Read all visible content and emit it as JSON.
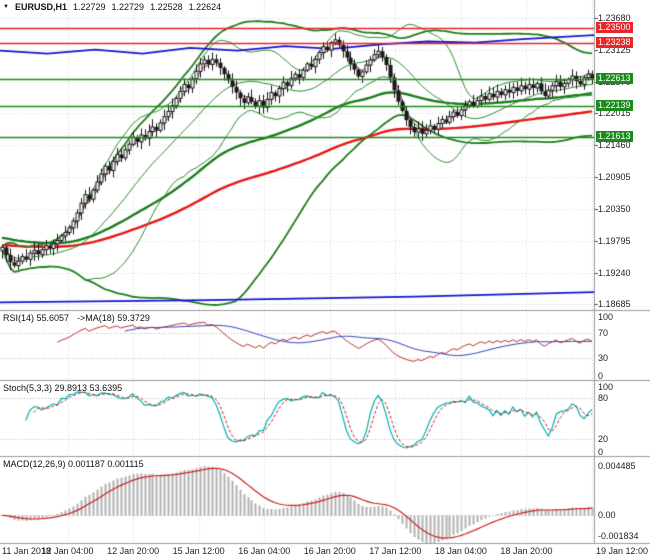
{
  "header": {
    "collapse_icon": "▼"
  },
  "colors": {
    "background": "#ffffff",
    "grid": "#d9d9d9",
    "separator": "#9a9a9a",
    "candle_outline": "#1a1a1a",
    "candle_bull": "#ffffff",
    "candle_bear": "#1a1a1a",
    "bollinger": "#2f8f2f",
    "band_wide": "#1e7d1e",
    "ma_green": "#1e7d1e",
    "ma_red": "#e81717",
    "ma_fast": "#b03060",
    "ma_blue": "#1515cf",
    "level_red": "#e8252a",
    "level_green": "#1c8a1c",
    "rsi_line": "#c03333",
    "rsi_ma": "#3344bb",
    "stoch_k": "#00b3b3",
    "stoch_d": "#cc2222",
    "macd_hist": "#b0b0b0",
    "macd_signal": "#cc2222",
    "axis_text": "#222222"
  },
  "chart_data": [
    {
      "id": "price",
      "type": "candlestick",
      "symbol": "EURUSD,H1",
      "ohlc": {
        "open": "1.22729",
        "high": "1.22729",
        "low": "1.22528",
        "close": "1.22624"
      },
      "y_range": [
        1.18588,
        1.23994
      ],
      "axis_ticks": [
        "1.23680",
        "1.23125",
        "1.22570",
        "1.22015",
        "1.21460",
        "1.20905",
        "1.20350",
        "1.19795",
        "1.19240",
        "1.18685"
      ],
      "levels": [
        {
          "value": 1.235,
          "label": "1.23500",
          "color": "#e8252a"
        },
        {
          "value": 1.23238,
          "label": "1.23238",
          "color": "#e8252a"
        },
        {
          "value": 1.22613,
          "label": "1.22613",
          "color": "#1c8a1c"
        },
        {
          "value": 1.22139,
          "label": "1.22139",
          "color": "#1c8a1c"
        },
        {
          "value": 1.21613,
          "label": "1.21613",
          "color": "#1c8a1c"
        }
      ],
      "closes": [
        1.1968,
        1.1955,
        1.1942,
        1.1936,
        1.1944,
        1.1952,
        1.1947,
        1.1958,
        1.1963,
        1.1956,
        1.1964,
        1.1971,
        1.1966,
        1.1974,
        1.198,
        1.1988,
        1.1994,
        1.2002,
        1.2014,
        1.2028,
        1.2045,
        1.206,
        1.2052,
        1.2068,
        1.2082,
        1.2096,
        1.211,
        1.2102,
        1.2118,
        1.213,
        1.2124,
        1.2138,
        1.2148,
        1.216,
        1.2152,
        1.2164,
        1.2158,
        1.217,
        1.2178,
        1.2172,
        1.2185,
        1.2196,
        1.2205,
        1.2215,
        1.2228,
        1.224,
        1.2252,
        1.2246,
        1.2262,
        1.2275,
        1.2288,
        1.2295,
        1.2287,
        1.2296,
        1.229,
        1.2281,
        1.227,
        1.2259,
        1.2248,
        1.2238,
        1.2228,
        1.222,
        1.223,
        1.2222,
        1.2214,
        1.2224,
        1.2212,
        1.2226,
        1.2238,
        1.2232,
        1.2245,
        1.2256,
        1.225,
        1.2263,
        1.227,
        1.2264,
        1.2277,
        1.2288,
        1.2283,
        1.2296,
        1.2308,
        1.2318,
        1.2312,
        1.2325,
        1.233,
        1.2321,
        1.231,
        1.2299,
        1.2288,
        1.2278,
        1.2266,
        1.2274,
        1.2286,
        1.2295,
        1.2304,
        1.231,
        1.23,
        1.2286,
        1.2264,
        1.2242,
        1.2222,
        1.2206,
        1.219,
        1.2178,
        1.2169,
        1.2175,
        1.2166,
        1.2172,
        1.218,
        1.2174,
        1.2184,
        1.2191,
        1.2186,
        1.2196,
        1.2204,
        1.2198,
        1.2208,
        1.2216,
        1.2222,
        1.2214,
        1.2224,
        1.2232,
        1.2226,
        1.2236,
        1.223,
        1.224,
        1.2234,
        1.2243,
        1.2238,
        1.2247,
        1.2241,
        1.225,
        1.2244,
        1.2252,
        1.2246,
        1.2254,
        1.224,
        1.2232,
        1.2242,
        1.225,
        1.2257,
        1.2248,
        1.2254,
        1.2261,
        1.2267,
        1.2258,
        1.2252,
        1.2264,
        1.227,
        1.22624
      ],
      "ma_channel": {
        "upper": [
          [
            0,
            1.2311
          ],
          [
            0.08,
            1.2306
          ],
          [
            0.16,
            1.2313
          ],
          [
            0.24,
            1.2306
          ],
          [
            0.32,
            1.2316
          ],
          [
            0.4,
            1.2311
          ],
          [
            0.48,
            1.2319
          ],
          [
            0.56,
            1.2314
          ],
          [
            0.64,
            1.2322
          ],
          [
            0.72,
            1.2327
          ],
          [
            0.8,
            1.2325
          ],
          [
            0.88,
            1.2331
          ],
          [
            1,
            1.2338
          ]
        ],
        "lower": [
          [
            0,
            1.1872
          ],
          [
            0.35,
            1.1876
          ],
          [
            0.7,
            1.1882
          ],
          [
            1,
            1.189
          ]
        ]
      },
      "x_labels": [
        "11 Jan 2018",
        "12 Jan 04:00",
        "12 Jan 20:00",
        "15 Jan 12:00",
        "16 Jan 04:00",
        "16 Jan 20:00",
        "17 Jan 12:00",
        "18 Jan 04:00",
        "18 Jan 20:00",
        "19 Jan 12:00"
      ]
    },
    {
      "id": "rsi",
      "type": "line",
      "label": "RSI(14) 55.6057",
      "ma_label": "->MA(18) 59.3729",
      "period": 14,
      "ma_period": 18,
      "current": 55.6057,
      "ma_current": 59.3729,
      "range": [
        0,
        100
      ],
      "levels": [
        70,
        30
      ],
      "ticks": [
        {
          "v": 100,
          "t": "100"
        },
        {
          "v": 70,
          "t": "70"
        },
        {
          "v": 30,
          "t": "30"
        },
        {
          "v": 0,
          "t": "0"
        }
      ]
    },
    {
      "id": "stochastic",
      "type": "line",
      "label": "Stoch(5,3,3) 29.8913 53.6395",
      "k_period": 5,
      "d_period": 3,
      "slowing": 3,
      "current_k": 29.8913,
      "current_d": 53.6395,
      "range": [
        0,
        100
      ],
      "levels": [
        80,
        20
      ],
      "ticks": [
        {
          "v": 100,
          "t": "100"
        },
        {
          "v": 80,
          "t": "80"
        },
        {
          "v": 20,
          "t": "20"
        },
        {
          "v": 0,
          "t": "0"
        }
      ]
    },
    {
      "id": "macd",
      "type": "histogram",
      "label": "MACD(12,26,9) 0.001187 0.001115",
      "fast": 12,
      "slow": 26,
      "signal_period": 9,
      "current": 0.001187,
      "signal_current": 0.001115,
      "range": [
        -0.00215,
        0.00495
      ],
      "ticks": [
        {
          "v": 0.004485,
          "t": "0.004485"
        },
        {
          "v": 0,
          "t": "0.00"
        },
        {
          "v": -0.001834,
          "t": "-0.001834"
        }
      ]
    }
  ]
}
